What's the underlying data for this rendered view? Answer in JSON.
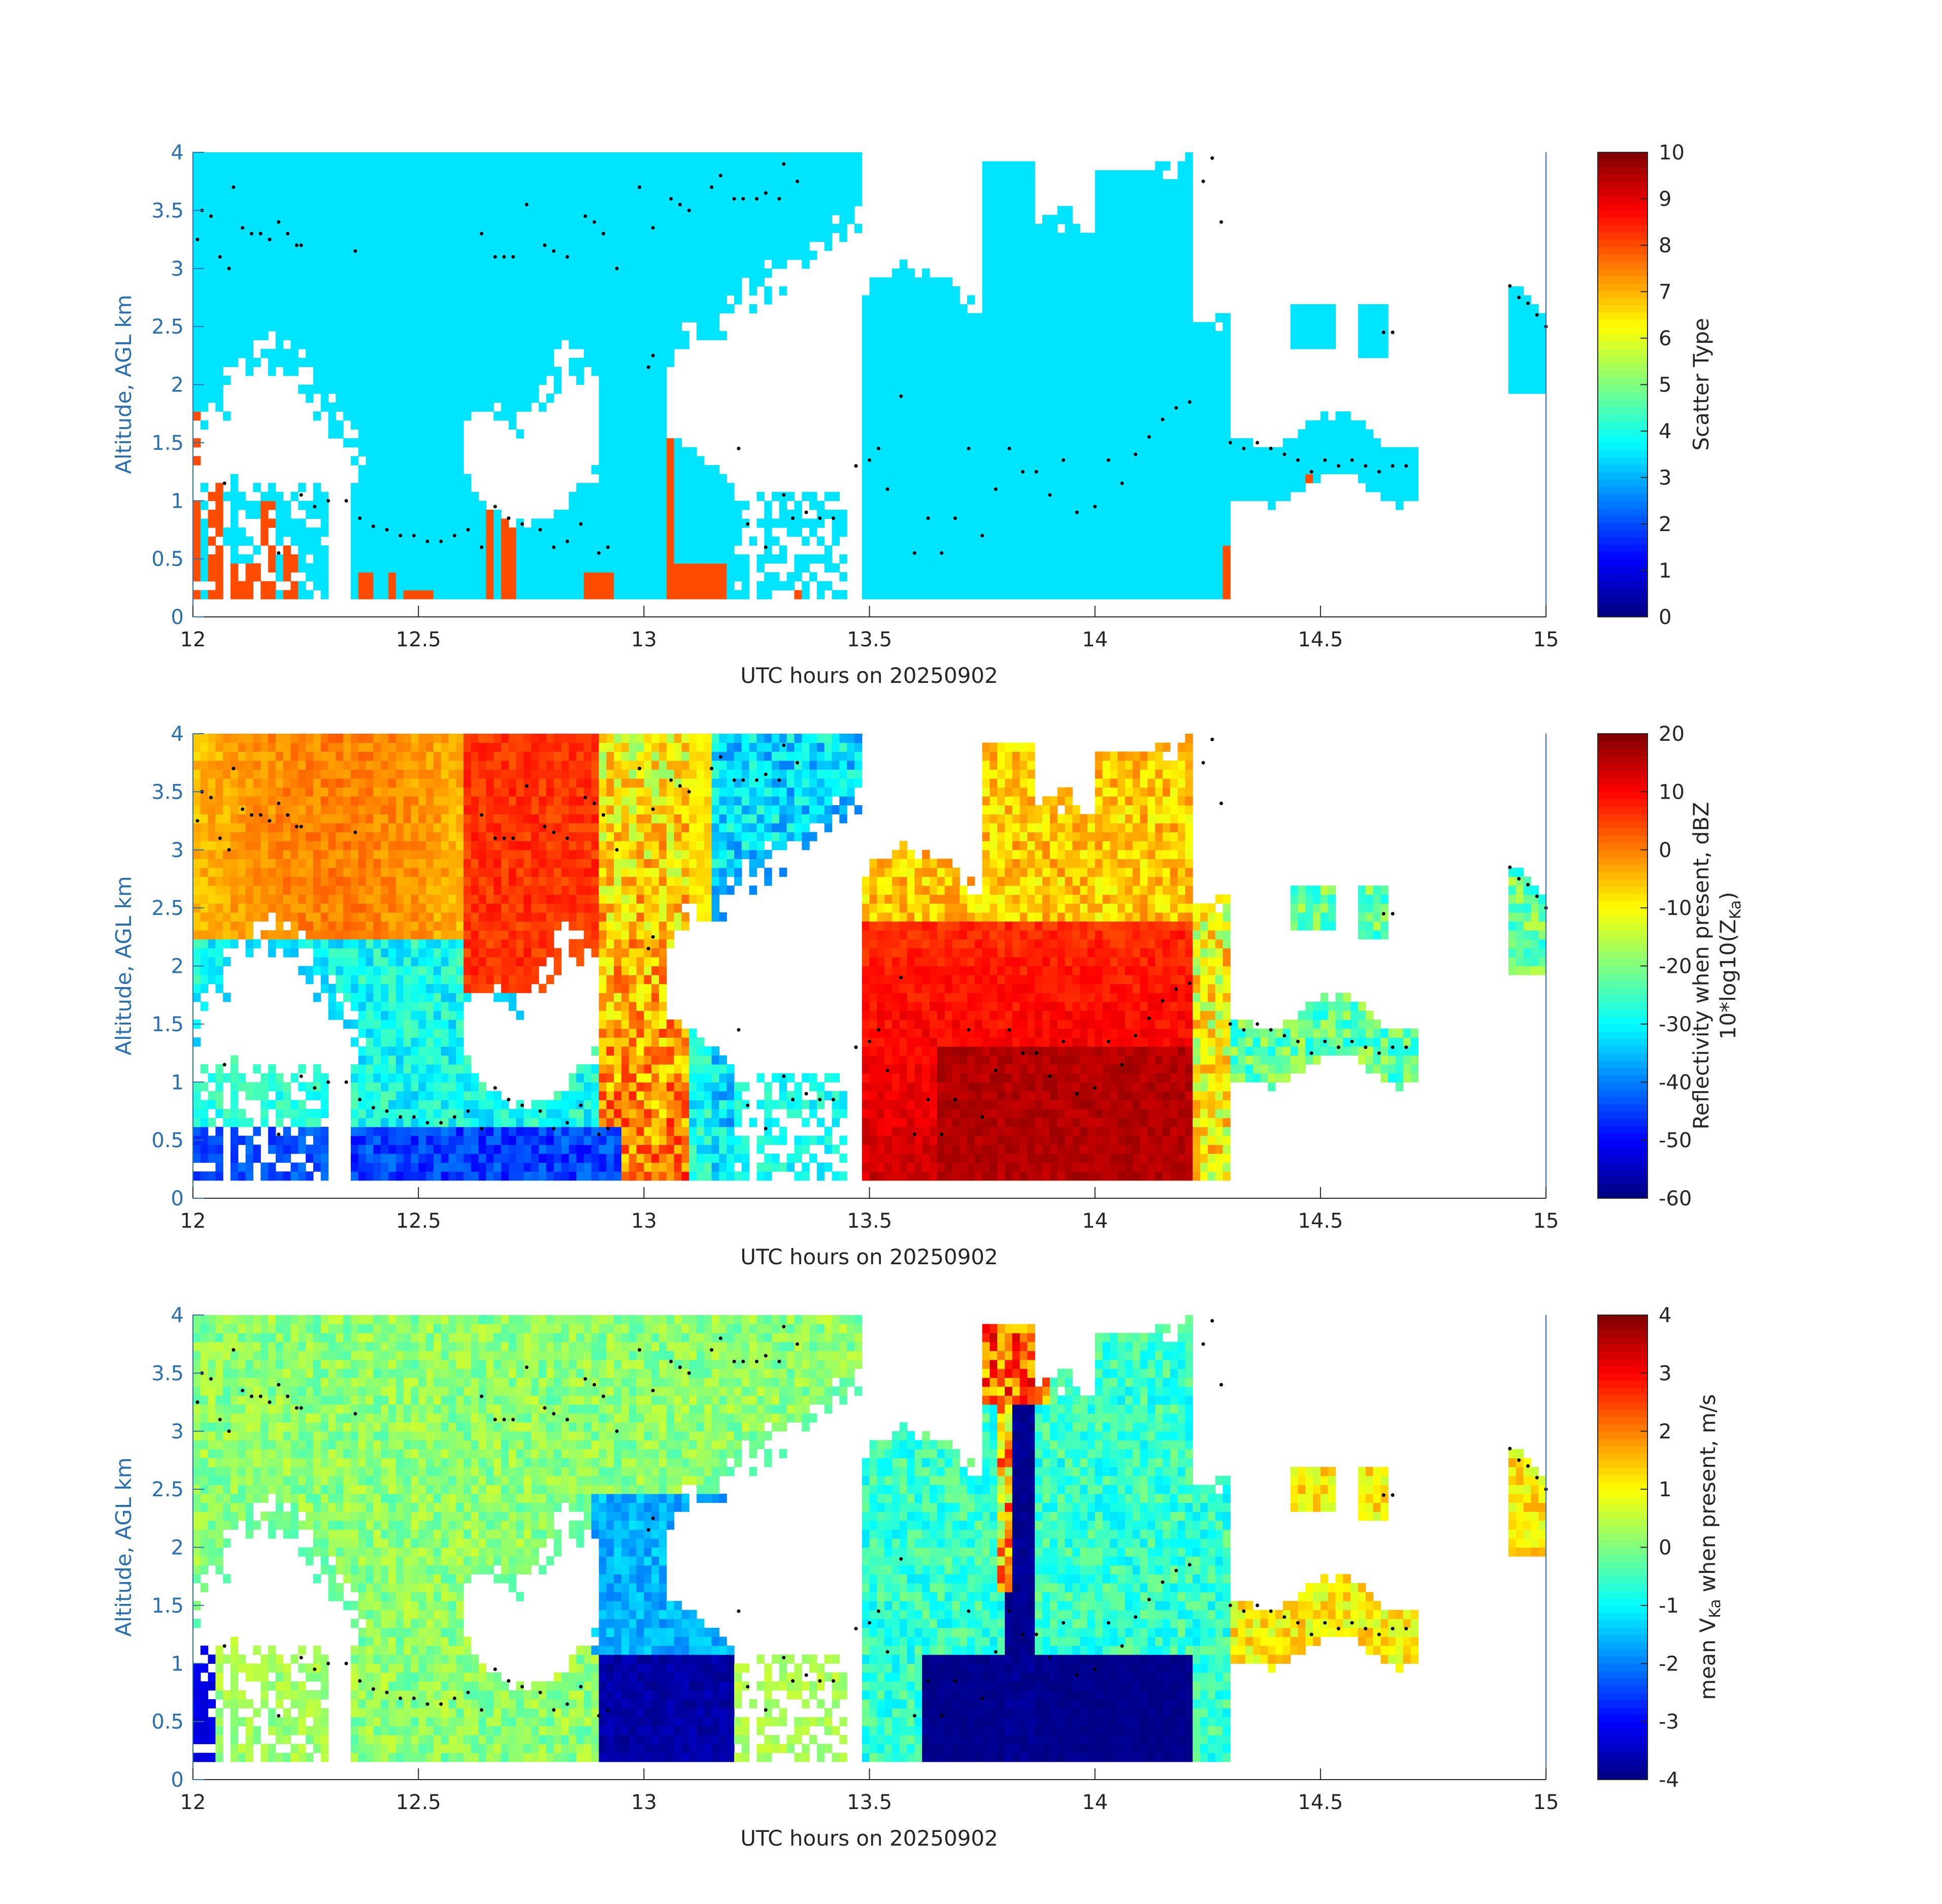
{
  "colors": {
    "axis_blue": "#2a6fb0",
    "text": "#262626",
    "jet": [
      "#00007f",
      "#0000ff",
      "#007fff",
      "#00ffff",
      "#7fff7f",
      "#ffff00",
      "#ff7f00",
      "#ff0000",
      "#7f0000"
    ]
  },
  "chart_data": [
    {
      "type": "heatmap",
      "xlabel": "UTC hours on 20250902",
      "ylabel": "Altitude, AGL km",
      "xlim": [
        12,
        15
      ],
      "ylim": [
        0,
        4
      ],
      "xticks": [
        "12",
        "12.5",
        "13",
        "13.5",
        "14",
        "14.5",
        "15"
      ],
      "yticks": [
        "0",
        "0.5",
        "1",
        "1.5",
        "2",
        "2.5",
        "3",
        "3.5",
        "4"
      ],
      "colorbar": {
        "label": "Scatter Type",
        "label_line2": "",
        "ticks": [
          "0",
          "1",
          "2",
          "3",
          "4",
          "5",
          "6",
          "7",
          "8",
          "9",
          "10"
        ],
        "range": [
          0,
          10
        ]
      },
      "field": "scatter_type",
      "field_values": {
        "cloud": 3.5,
        "precip": 8.0
      }
    },
    {
      "type": "heatmap",
      "xlabel": "UTC hours on 20250902",
      "ylabel": "Altitude, AGL km",
      "xlim": [
        12,
        15
      ],
      "ylim": [
        0,
        4
      ],
      "xticks": [
        "12",
        "12.5",
        "13",
        "13.5",
        "14",
        "14.5",
        "15"
      ],
      "yticks": [
        "0",
        "0.5",
        "1",
        "1.5",
        "2",
        "2.5",
        "3",
        "3.5",
        "4"
      ],
      "colorbar": {
        "label": "Reflectivity when present, dBZ",
        "label_line2": "10*log10(Z",
        "label_line2_sub": "Ka",
        "label_line2_end": ")",
        "ticks": [
          "-60",
          "-50",
          "-40",
          "-30",
          "-20",
          "-10",
          "0",
          "10",
          "20"
        ],
        "range": [
          -60,
          20
        ]
      },
      "field": "reflectivity_dbz"
    },
    {
      "type": "heatmap",
      "xlabel": "UTC hours on 20250902",
      "ylabel": "Altitude, AGL km",
      "xlim": [
        12,
        15
      ],
      "ylim": [
        0,
        4
      ],
      "xticks": [
        "12",
        "12.5",
        "13",
        "13.5",
        "14",
        "14.5",
        "15"
      ],
      "yticks": [
        "0",
        "0.5",
        "1",
        "1.5",
        "2",
        "2.5",
        "3",
        "3.5",
        "4"
      ],
      "colorbar": {
        "label": "mean V",
        "label_sub": "Ka",
        "label_end": " when present, m/s",
        "ticks": [
          "-4",
          "-3",
          "-2",
          "-1",
          "0",
          "1",
          "2",
          "3",
          "4"
        ],
        "range": [
          -4,
          4
        ]
      },
      "field": "mean_velocity"
    }
  ],
  "cloud_base_points": [
    [
      12.01,
      3.25
    ],
    [
      12.02,
      3.5
    ],
    [
      12.04,
      3.45
    ],
    [
      12.06,
      3.1
    ],
    [
      12.08,
      3.0
    ],
    [
      12.09,
      3.7
    ],
    [
      12.11,
      3.35
    ],
    [
      12.13,
      3.3
    ],
    [
      12.15,
      3.3
    ],
    [
      12.17,
      3.25
    ],
    [
      12.19,
      3.4
    ],
    [
      12.21,
      3.3
    ],
    [
      12.23,
      3.2
    ],
    [
      12.24,
      3.2
    ],
    [
      12.36,
      3.15
    ],
    [
      12.64,
      3.3
    ],
    [
      12.67,
      3.1
    ],
    [
      12.69,
      3.1
    ],
    [
      12.71,
      3.1
    ],
    [
      12.74,
      3.55
    ],
    [
      12.78,
      3.2
    ],
    [
      12.8,
      3.15
    ],
    [
      12.83,
      3.1
    ],
    [
      12.87,
      3.45
    ],
    [
      12.89,
      3.4
    ],
    [
      12.91,
      3.3
    ],
    [
      12.94,
      3.0
    ],
    [
      12.99,
      3.7
    ],
    [
      13.02,
      3.35
    ],
    [
      13.06,
      3.6
    ],
    [
      13.08,
      3.55
    ],
    [
      13.1,
      3.5
    ],
    [
      13.15,
      3.7
    ],
    [
      13.17,
      3.8
    ],
    [
      13.2,
      3.6
    ],
    [
      13.22,
      3.6
    ],
    [
      13.25,
      3.6
    ],
    [
      13.27,
      3.65
    ],
    [
      13.3,
      3.6
    ],
    [
      13.31,
      3.9
    ],
    [
      13.34,
      3.75
    ],
    [
      12.07,
      1.15
    ],
    [
      12.19,
      0.55
    ],
    [
      12.24,
      1.05
    ],
    [
      12.27,
      0.95
    ],
    [
      12.3,
      1.0
    ],
    [
      12.34,
      1.0
    ],
    [
      12.37,
      0.85
    ],
    [
      12.4,
      0.78
    ],
    [
      12.43,
      0.75
    ],
    [
      12.46,
      0.7
    ],
    [
      12.49,
      0.7
    ],
    [
      12.52,
      0.65
    ],
    [
      12.55,
      0.65
    ],
    [
      12.58,
      0.7
    ],
    [
      12.61,
      0.75
    ],
    [
      12.64,
      0.6
    ],
    [
      12.67,
      0.95
    ],
    [
      12.7,
      0.85
    ],
    [
      12.73,
      0.8
    ],
    [
      12.77,
      0.75
    ],
    [
      12.8,
      0.6
    ],
    [
      12.83,
      0.65
    ],
    [
      12.86,
      0.8
    ],
    [
      12.9,
      0.55
    ],
    [
      12.92,
      0.6
    ],
    [
      13.01,
      2.15
    ],
    [
      13.02,
      2.25
    ],
    [
      13.21,
      1.45
    ],
    [
      13.23,
      0.8
    ],
    [
      13.27,
      0.6
    ],
    [
      13.31,
      1.05
    ],
    [
      13.33,
      0.85
    ],
    [
      13.36,
      0.9
    ],
    [
      13.39,
      0.85
    ],
    [
      13.42,
      0.85
    ],
    [
      13.47,
      1.3
    ],
    [
      13.5,
      1.35
    ],
    [
      13.52,
      1.45
    ],
    [
      13.54,
      1.1
    ],
    [
      13.57,
      1.9
    ],
    [
      13.6,
      0.55
    ],
    [
      13.63,
      0.85
    ],
    [
      13.66,
      0.55
    ],
    [
      13.69,
      0.85
    ],
    [
      13.72,
      1.45
    ],
    [
      13.75,
      0.7
    ],
    [
      13.78,
      1.1
    ],
    [
      13.81,
      1.45
    ],
    [
      13.84,
      1.25
    ],
    [
      13.87,
      1.25
    ],
    [
      13.9,
      1.05
    ],
    [
      13.93,
      1.35
    ],
    [
      13.96,
      0.9
    ],
    [
      14.0,
      0.95
    ],
    [
      14.03,
      1.35
    ],
    [
      14.06,
      1.15
    ],
    [
      14.09,
      1.4
    ],
    [
      14.12,
      1.55
    ],
    [
      14.15,
      1.7
    ],
    [
      14.18,
      1.8
    ],
    [
      14.21,
      1.85
    ],
    [
      14.24,
      3.75
    ],
    [
      14.26,
      3.95
    ],
    [
      14.28,
      3.4
    ],
    [
      14.3,
      1.5
    ],
    [
      14.33,
      1.45
    ],
    [
      14.36,
      1.5
    ],
    [
      14.39,
      1.45
    ],
    [
      14.42,
      1.4
    ],
    [
      14.45,
      1.35
    ],
    [
      14.48,
      1.25
    ],
    [
      14.51,
      1.35
    ],
    [
      14.54,
      1.3
    ],
    [
      14.57,
      1.35
    ],
    [
      14.6,
      1.3
    ],
    [
      14.63,
      1.25
    ],
    [
      14.66,
      1.3
    ],
    [
      14.69,
      1.3
    ],
    [
      14.64,
      2.45
    ],
    [
      14.66,
      2.45
    ],
    [
      14.92,
      2.85
    ],
    [
      14.94,
      2.75
    ],
    [
      14.96,
      2.7
    ],
    [
      14.98,
      2.6
    ],
    [
      15.0,
      2.5
    ]
  ]
}
